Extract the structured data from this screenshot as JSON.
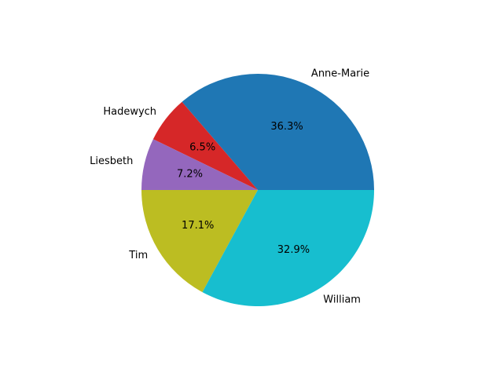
{
  "chart_data": {
    "type": "pie",
    "title": "",
    "slices": [
      {
        "label": "Anne-Marie",
        "value": 36.3,
        "pct_label": "36.3%",
        "color": "#1f77b4"
      },
      {
        "label": "Hadewych",
        "value": 6.5,
        "pct_label": "6.5%",
        "color": "#d62728"
      },
      {
        "label": "Liesbeth",
        "value": 7.2,
        "pct_label": "7.2%",
        "color": "#9467bd"
      },
      {
        "label": "Tim",
        "value": 17.1,
        "pct_label": "17.1%",
        "color": "#bcbd22"
      },
      {
        "label": "William",
        "value": 32.9,
        "pct_label": "32.9%",
        "color": "#17becf"
      }
    ],
    "start_angle_deg": 0,
    "direction": "counterclockwise",
    "legend": "none"
  }
}
